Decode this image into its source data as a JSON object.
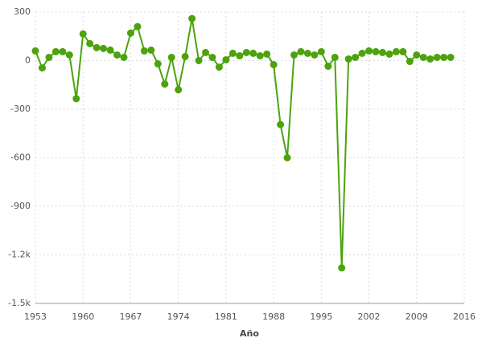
{
  "chart_data": {
    "type": "line",
    "x_label": "Año",
    "x": [
      1953,
      1954,
      1955,
      1956,
      1957,
      1958,
      1959,
      1960,
      1961,
      1962,
      1963,
      1964,
      1965,
      1966,
      1967,
      1968,
      1969,
      1970,
      1971,
      1972,
      1973,
      1974,
      1975,
      1976,
      1977,
      1978,
      1979,
      1980,
      1981,
      1982,
      1983,
      1984,
      1985,
      1986,
      1987,
      1988,
      1989,
      1990,
      1991,
      1992,
      1993,
      1994,
      1995,
      1996,
      1997,
      1998,
      1999,
      2000,
      2001,
      2002,
      2003,
      2004,
      2005,
      2006,
      2007,
      2008,
      2009,
      2010,
      2011,
      2012,
      2013,
      2014
    ],
    "series": [
      {
        "color": "#4ca30d",
        "values": [
          60,
          -45,
          20,
          55,
          55,
          35,
          -235,
          165,
          105,
          80,
          75,
          65,
          35,
          20,
          170,
          210,
          60,
          65,
          -20,
          -145,
          20,
          -180,
          25,
          260,
          0,
          50,
          20,
          -40,
          5,
          45,
          30,
          50,
          45,
          30,
          40,
          -25,
          -395,
          -600,
          35,
          55,
          45,
          35,
          55,
          -35,
          20,
          -1280,
          10,
          20,
          45,
          60,
          55,
          50,
          40,
          55,
          55,
          -5,
          35,
          20,
          10,
          20,
          20,
          20
        ]
      }
    ],
    "xlim": [
      1953,
      2016
    ],
    "xticks": [
      1953,
      1960,
      1967,
      1974,
      1981,
      1988,
      1995,
      2002,
      2009,
      2016
    ],
    "ylim": [
      -1500,
      300
    ],
    "yticks": [
      300,
      0,
      -300,
      -600,
      -900,
      {
        "value": -1200,
        "label": "-1.2k"
      },
      {
        "value": -1500,
        "label": "-1.5k"
      }
    ],
    "grid": true
  }
}
